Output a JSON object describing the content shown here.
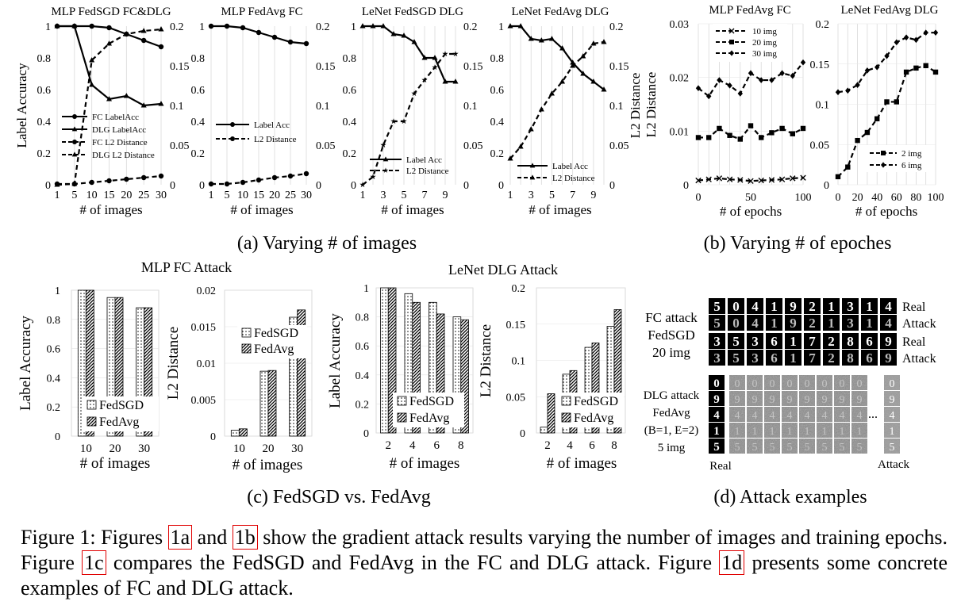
{
  "figure": {
    "subcaptions": {
      "a": "(a) Varying # of images",
      "b": "(b) Varying # of epoches",
      "c": "(c) FedSGD vs. FedAvg",
      "d": "(d) Attack examples"
    },
    "caption": {
      "s1": "Figure 1: Figures ",
      "r1": "1a",
      "s2": " and ",
      "r2": "1b",
      "s3": " show the gradient attack results varying the number of images and training epochs. Figure ",
      "r3": "1c",
      "s4": " compares the FedSGD and FedAvg in the FC and DLG attack. Figure ",
      "r4": "1d",
      "s5": " presents some concrete examples of FC and DLG attack."
    },
    "group_titles": {
      "c_left": "MLP FC Attack",
      "c_right": "LeNet DLG Attack"
    }
  },
  "chart_data": [
    {
      "id": "a1",
      "type": "line",
      "title": "MLP FedSGD FC&DLG",
      "xlabel": "# of images",
      "ylabel": "Label Accuracy",
      "y2label": "",
      "categories": [
        "1",
        "5",
        "10",
        "15",
        "20",
        "25",
        "30"
      ],
      "ylim": [
        0,
        1
      ],
      "yticks": [
        "0",
        "0.2",
        "0.4",
        "0.6",
        "0.8",
        "1"
      ],
      "y2lim": [
        0,
        0.2
      ],
      "y2ticks": [
        "0",
        "0.05",
        "0.1",
        "0.15",
        "0.2"
      ],
      "legend": "bottom-left",
      "series": [
        {
          "name": "FC LabelAcc",
          "axis": "left",
          "marker": "circle",
          "dash": false,
          "values": [
            1,
            1,
            1,
            0.99,
            0.95,
            0.91,
            0.87
          ]
        },
        {
          "name": "DLG LabelAcc",
          "axis": "left",
          "marker": "triangle",
          "dash": false,
          "values": [
            1,
            1,
            0.63,
            0.54,
            0.56,
            0.5,
            0.51
          ]
        },
        {
          "name": "FC L2 Distance",
          "axis": "right",
          "marker": "circle",
          "dash": true,
          "values": [
            0.001,
            0.001,
            0.003,
            0.005,
            0.007,
            0.009,
            0.011
          ]
        },
        {
          "name": "DLG L2 Distance",
          "axis": "right",
          "marker": "triangle",
          "dash": true,
          "values": [
            0,
            0.001,
            0.157,
            0.178,
            0.19,
            0.194,
            0.196
          ]
        }
      ]
    },
    {
      "id": "a2",
      "type": "line",
      "title": "MLP FedAvg FC",
      "xlabel": "# of images",
      "ylabel": "",
      "y2label": "",
      "categories": [
        "1",
        "5",
        "10",
        "15",
        "20",
        "25",
        "30"
      ],
      "ylim": [
        0,
        1
      ],
      "yticks": [
        "0",
        "0.2",
        "0.4",
        "0.6",
        "0.8",
        "1"
      ],
      "y2lim": [
        0,
        0.2
      ],
      "y2ticks": [
        "0",
        "0.05",
        "0.1",
        "0.15",
        "0.2"
      ],
      "legend": "center-left",
      "series": [
        {
          "name": "Label Acc",
          "axis": "left",
          "marker": "circle",
          "dash": false,
          "values": [
            1,
            1,
            0.99,
            0.96,
            0.93,
            0.9,
            0.89
          ]
        },
        {
          "name": "L2 Distance",
          "axis": "right",
          "marker": "circle",
          "dash": true,
          "values": [
            0.001,
            0.001,
            0.003,
            0.006,
            0.009,
            0.011,
            0.014
          ]
        }
      ]
    },
    {
      "id": "a3",
      "type": "line",
      "title": "LeNet FedSGD DLG",
      "xlabel": "# of images",
      "ylabel": "",
      "y2label": "",
      "categories": [
        "1",
        "2",
        "3",
        "4",
        "5",
        "6",
        "7",
        "8",
        "9",
        "10"
      ],
      "xtick_labels": [
        "1",
        "",
        "3",
        "",
        "5",
        "",
        "7",
        "",
        "9",
        ""
      ],
      "ylim": [
        0,
        1
      ],
      "yticks": [
        "0",
        "0.2",
        "0.4",
        "0.6",
        "0.8",
        "1"
      ],
      "y2lim": [
        0,
        0.2
      ],
      "y2ticks": [
        "0",
        "0.05",
        "0.1",
        "0.15",
        "0.2"
      ],
      "legend": "bottom-center",
      "series": [
        {
          "name": "Label Acc",
          "axis": "left",
          "marker": "triangle",
          "dash": false,
          "values": [
            1,
            1,
            1,
            0.95,
            0.94,
            0.9,
            0.8,
            0.8,
            0.65,
            0.65
          ]
        },
        {
          "name": "L2 Distance",
          "axis": "right",
          "marker": "star",
          "dash": true,
          "values": [
            0,
            0.01,
            0.05,
            0.08,
            0.08,
            0.115,
            0.132,
            0.148,
            0.165,
            0.165
          ]
        }
      ]
    },
    {
      "id": "a4",
      "type": "line",
      "title": "LeNet FedAvg DLG",
      "xlabel": "# of images",
      "ylabel": "",
      "y2label": "L2 Distance",
      "categories": [
        "1",
        "2",
        "3",
        "4",
        "5",
        "6",
        "7",
        "8",
        "9",
        "10"
      ],
      "xtick_labels": [
        "1",
        "",
        "3",
        "",
        "5",
        "",
        "7",
        "",
        "9",
        ""
      ],
      "ylim": [
        0,
        1
      ],
      "yticks": [
        "0",
        "0.2",
        "0.4",
        "0.6",
        "0.8",
        "1"
      ],
      "y2lim": [
        0,
        0.2
      ],
      "y2ticks": [
        "0",
        "0.05",
        "0.1",
        "0.15",
        "0.2"
      ],
      "legend": "bottom-center",
      "series": [
        {
          "name": "Label Acc",
          "axis": "left",
          "marker": "triangle",
          "dash": false,
          "values": [
            1,
            1,
            0.92,
            0.91,
            0.92,
            0.86,
            0.77,
            0.7,
            0.65,
            0.6
          ]
        },
        {
          "name": "L2 Distance",
          "axis": "right",
          "marker": "triangle",
          "dash": true,
          "values": [
            0.033,
            0.048,
            0.07,
            0.095,
            0.115,
            0.13,
            0.15,
            0.162,
            0.178,
            0.18
          ]
        }
      ]
    },
    {
      "id": "b1",
      "type": "line",
      "title": "MLP FedAvg FC",
      "xlabel": "# of epochs",
      "ylabel": "L2 Distance",
      "y2label": "",
      "x": [
        0,
        10,
        20,
        30,
        40,
        50,
        60,
        70,
        80,
        90,
        100
      ],
      "xticks": [
        0,
        50,
        100
      ],
      "ylim": [
        0,
        0.03
      ],
      "yticks": [
        "0",
        "0.01",
        "0.02",
        "0.03"
      ],
      "legend": "top-left",
      "series": [
        {
          "name": "10 img",
          "marker": "x",
          "dash": true,
          "values": [
            0.0008,
            0.001,
            0.0012,
            0.001,
            0.0009,
            0.0007,
            0.0008,
            0.0009,
            0.001,
            0.0012,
            0.0013
          ]
        },
        {
          "name": "20 img",
          "marker": "square",
          "dash": true,
          "values": [
            0.0088,
            0.0088,
            0.0105,
            0.0092,
            0.0085,
            0.011,
            0.0088,
            0.0097,
            0.0105,
            0.0095,
            0.0105
          ]
        },
        {
          "name": "30 img",
          "marker": "diamond",
          "dash": true,
          "values": [
            0.018,
            0.0165,
            0.0195,
            0.0185,
            0.017,
            0.0208,
            0.0195,
            0.0195,
            0.0208,
            0.0203,
            0.0228
          ]
        }
      ]
    },
    {
      "id": "b2",
      "type": "line",
      "title": "LeNet FedAvg DLG",
      "xlabel": "# of epochs",
      "ylabel": "",
      "y2label": "",
      "x": [
        0,
        10,
        20,
        30,
        40,
        50,
        60,
        70,
        80,
        90,
        100
      ],
      "xticks": [
        0,
        20,
        40,
        60,
        80,
        100
      ],
      "ylim": [
        0,
        0.2
      ],
      "yticks": [
        "0",
        "0.05",
        "0.1",
        "0.15",
        "0.2"
      ],
      "legend": "bottom-right",
      "series": [
        {
          "name": "2 img",
          "marker": "square",
          "dash": true,
          "values": [
            0.01,
            0.022,
            0.055,
            0.065,
            0.082,
            0.103,
            0.103,
            0.14,
            0.145,
            0.148,
            0.14
          ]
        },
        {
          "name": "6 img",
          "marker": "diamond",
          "dash": true,
          "values": [
            0.115,
            0.117,
            0.124,
            0.142,
            0.146,
            0.16,
            0.177,
            0.183,
            0.18,
            0.189,
            0.189
          ]
        }
      ]
    },
    {
      "id": "c1",
      "type": "bar",
      "title": "",
      "xlabel": "# of images",
      "ylabel": "Label Accuracy",
      "categories": [
        "10",
        "20",
        "30"
      ],
      "ylim": [
        0,
        1
      ],
      "yticks": [
        "0",
        "0.2",
        "0.4",
        "0.6",
        "0.8",
        "1"
      ],
      "legend": "bottom-center",
      "series": [
        {
          "name": "FedSGD",
          "pattern": "dots",
          "values": [
            1,
            0.95,
            0.88
          ]
        },
        {
          "name": "FedAvg",
          "pattern": "diag",
          "values": [
            1,
            0.95,
            0.88
          ]
        }
      ]
    },
    {
      "id": "c2",
      "type": "bar",
      "title": "",
      "xlabel": "# of images",
      "ylabel": "L2 Distance",
      "categories": [
        "10",
        "20",
        "30"
      ],
      "ylim": [
        0,
        0.02
      ],
      "yticks": [
        "0",
        "0.005",
        "0.01",
        "0.015",
        "0.02"
      ],
      "legend": "top-left",
      "series": [
        {
          "name": "FedSGD",
          "pattern": "dots",
          "values": [
            0.0008,
            0.0089,
            0.0163
          ]
        },
        {
          "name": "FedAvg",
          "pattern": "diag",
          "values": [
            0.001,
            0.009,
            0.0173
          ]
        }
      ]
    },
    {
      "id": "c3",
      "type": "bar",
      "title": "",
      "xlabel": "# of images",
      "ylabel": "Label Accuracy",
      "categories": [
        "2",
        "4",
        "6",
        "8"
      ],
      "ylim": [
        0,
        1
      ],
      "yticks": [
        "0",
        "0.2",
        "0.4",
        "0.6",
        "0.8",
        "1"
      ],
      "legend": "bottom-center",
      "series": [
        {
          "name": "FedSGD",
          "pattern": "dots",
          "values": [
            1,
            0.96,
            0.9,
            0.8
          ]
        },
        {
          "name": "FedAvg",
          "pattern": "diag",
          "values": [
            1,
            0.9,
            0.82,
            0.78
          ]
        }
      ]
    },
    {
      "id": "c4",
      "type": "bar",
      "title": "",
      "xlabel": "# of images",
      "ylabel": "L2 Distance",
      "categories": [
        "2",
        "4",
        "6",
        "8"
      ],
      "ylim": [
        0,
        0.2
      ],
      "yticks": [
        "0",
        "0.05",
        "0.1",
        "0.15",
        "0.2"
      ],
      "legend": "bottom-center",
      "series": [
        {
          "name": "FedSGD",
          "pattern": "dots",
          "values": [
            0.008,
            0.081,
            0.118,
            0.147
          ]
        },
        {
          "name": "FedAvg",
          "pattern": "diag",
          "values": [
            0.054,
            0.086,
            0.124,
            0.17
          ]
        }
      ]
    }
  ],
  "examples": {
    "fc_label": [
      "FC attack",
      "FedSGD",
      "20 img"
    ],
    "dlg_label": [
      "DLG attack",
      "FedAvg",
      "(B=1, E=2)",
      "5 img"
    ],
    "row_labels": [
      "Real",
      "Attack",
      "Real",
      "Attack"
    ],
    "fc_rows": [
      [
        "5",
        "0",
        "4",
        "1",
        "9",
        "2",
        "1",
        "3",
        "1",
        "4"
      ],
      [
        "5",
        "0",
        "4",
        "1",
        "9",
        "2",
        "1",
        "3",
        "1",
        "4"
      ],
      [
        "3",
        "5",
        "3",
        "6",
        "1",
        "7",
        "2",
        "8",
        "6",
        "9"
      ],
      [
        "3",
        "5",
        "3",
        "6",
        "1",
        "7",
        "2",
        "8",
        "6",
        "9"
      ]
    ],
    "dlg_digits": [
      "0",
      "9",
      "4",
      "1",
      "5"
    ],
    "ellipsis": "...",
    "bottom_left": "Real",
    "bottom_right": "Attack"
  }
}
